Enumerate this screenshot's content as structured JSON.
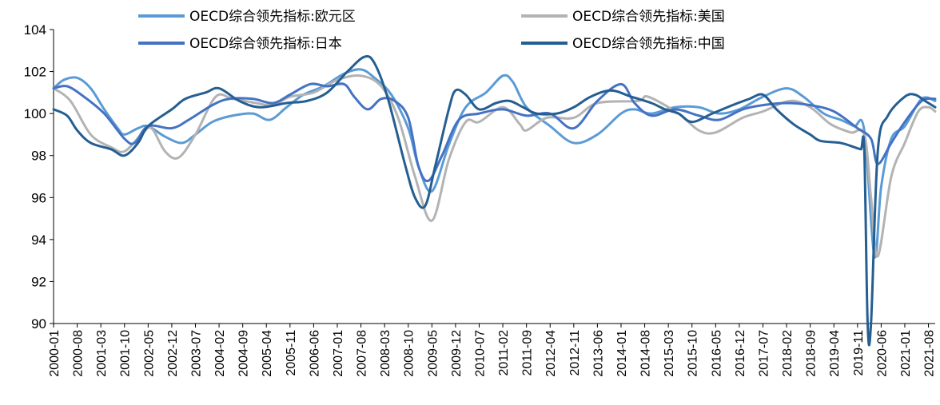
{
  "chart_data": {
    "type": "line",
    "title": "",
    "xlabel": "",
    "ylabel": "",
    "ylim": [
      90,
      104
    ],
    "yticks": [
      90,
      92,
      94,
      96,
      98,
      100,
      102,
      104
    ],
    "x_range": [
      "2000-01",
      "2021-10"
    ],
    "xticks": [
      "2000-01",
      "2000-08",
      "2001-03",
      "2001-10",
      "2002-05",
      "2002-12",
      "2003-07",
      "2004-02",
      "2004-09",
      "2005-04",
      "2005-11",
      "2006-06",
      "2007-01",
      "2007-08",
      "2008-03",
      "2008-10",
      "2009-05",
      "2009-12",
      "2010-07",
      "2011-02",
      "2011-09",
      "2012-04",
      "2012-11",
      "2013-06",
      "2014-01",
      "2014-08",
      "2015-03",
      "2015-10",
      "2016-05",
      "2016-12",
      "2017-07",
      "2018-02",
      "2018-09",
      "2019-04",
      "2019-11",
      "2020-06",
      "2021-01",
      "2021-08"
    ],
    "legend_position": "top",
    "series": [
      {
        "name": "OECD综合领先指标:欧元区",
        "color": "#5b9bd5",
        "points": [
          [
            "2000-01",
            101.2
          ],
          [
            "2000-04",
            101.6
          ],
          [
            "2000-08",
            101.7
          ],
          [
            "2000-12",
            101.2
          ],
          [
            "2001-04",
            100.2
          ],
          [
            "2001-08",
            99.3
          ],
          [
            "2001-10",
            99.0
          ],
          [
            "2002-02",
            99.3
          ],
          [
            "2002-05",
            99.4
          ],
          [
            "2002-10",
            98.9
          ],
          [
            "2003-03",
            98.6
          ],
          [
            "2003-07",
            99.0
          ],
          [
            "2003-12",
            99.6
          ],
          [
            "2004-06",
            99.9
          ],
          [
            "2004-12",
            100.0
          ],
          [
            "2005-05",
            99.7
          ],
          [
            "2005-10",
            100.3
          ],
          [
            "2006-03",
            100.9
          ],
          [
            "2006-09",
            101.3
          ],
          [
            "2007-03",
            101.9
          ],
          [
            "2007-08",
            102.1
          ],
          [
            "2007-12",
            101.7
          ],
          [
            "2008-05",
            100.9
          ],
          [
            "2008-10",
            99.3
          ],
          [
            "2009-01",
            97.5
          ],
          [
            "2009-05",
            96.3
          ],
          [
            "2009-10",
            98.5
          ],
          [
            "2010-03",
            100.3
          ],
          [
            "2010-09",
            101.0
          ],
          [
            "2011-02",
            101.8
          ],
          [
            "2011-05",
            101.5
          ],
          [
            "2011-09",
            100.3
          ],
          [
            "2012-04",
            99.4
          ],
          [
            "2012-11",
            98.6
          ],
          [
            "2013-06",
            99.0
          ],
          [
            "2014-01",
            100.0
          ],
          [
            "2014-05",
            100.2
          ],
          [
            "2014-10",
            100.0
          ],
          [
            "2015-05",
            100.3
          ],
          [
            "2015-12",
            100.3
          ],
          [
            "2016-06",
            100.0
          ],
          [
            "2016-12",
            100.2
          ],
          [
            "2017-07",
            100.8
          ],
          [
            "2018-02",
            101.2
          ],
          [
            "2018-07",
            100.8
          ],
          [
            "2019-01",
            100.0
          ],
          [
            "2019-06",
            99.7
          ],
          [
            "2019-10",
            99.4
          ],
          [
            "2020-01",
            99.2
          ],
          [
            "2020-04",
            93.2
          ],
          [
            "2020-06",
            96.5
          ],
          [
            "2020-09",
            98.8
          ],
          [
            "2021-01",
            99.4
          ],
          [
            "2021-06",
            100.7
          ],
          [
            "2021-10",
            100.6
          ]
        ]
      },
      {
        "name": "OECD综合领先指标:美国",
        "color": "#b3b3b3",
        "points": [
          [
            "2000-01",
            101.2
          ],
          [
            "2000-06",
            100.6
          ],
          [
            "2000-12",
            99.0
          ],
          [
            "2001-06",
            98.4
          ],
          [
            "2001-10",
            98.2
          ],
          [
            "2002-03",
            99.0
          ],
          [
            "2002-06",
            99.3
          ],
          [
            "2002-10",
            98.2
          ],
          [
            "2003-02",
            97.9
          ],
          [
            "2003-07",
            99.0
          ],
          [
            "2004-01",
            100.8
          ],
          [
            "2004-06",
            100.7
          ],
          [
            "2005-01",
            100.5
          ],
          [
            "2005-06",
            100.4
          ],
          [
            "2005-11",
            100.8
          ],
          [
            "2006-06",
            101.0
          ],
          [
            "2007-01",
            101.6
          ],
          [
            "2007-08",
            101.8
          ],
          [
            "2008-02",
            101.3
          ],
          [
            "2008-07",
            99.8
          ],
          [
            "2008-12",
            97.0
          ],
          [
            "2009-05",
            94.9
          ],
          [
            "2009-10",
            97.8
          ],
          [
            "2010-03",
            99.6
          ],
          [
            "2010-07",
            99.6
          ],
          [
            "2011-02",
            100.3
          ],
          [
            "2011-07",
            99.5
          ],
          [
            "2011-09",
            99.2
          ],
          [
            "2012-03",
            99.8
          ],
          [
            "2012-11",
            99.8
          ],
          [
            "2013-06",
            100.5
          ],
          [
            "2014-06",
            100.6
          ],
          [
            "2014-09",
            100.8
          ],
          [
            "2015-06",
            100.0
          ],
          [
            "2015-12",
            99.2
          ],
          [
            "2016-05",
            99.1
          ],
          [
            "2017-01",
            99.8
          ],
          [
            "2017-07",
            100.1
          ],
          [
            "2018-03",
            100.6
          ],
          [
            "2018-09",
            100.3
          ],
          [
            "2019-03",
            99.5
          ],
          [
            "2019-09",
            99.1
          ],
          [
            "2020-01",
            99.0
          ],
          [
            "2020-03",
            96.0
          ],
          [
            "2020-05",
            93.2
          ],
          [
            "2020-09",
            97.0
          ],
          [
            "2021-01",
            98.6
          ],
          [
            "2021-05",
            100.1
          ],
          [
            "2021-08",
            100.3
          ],
          [
            "2021-10",
            100.1
          ]
        ]
      },
      {
        "name": "OECD综合领先指标:日本",
        "color": "#4472c4",
        "points": [
          [
            "2000-01",
            101.2
          ],
          [
            "2000-05",
            101.3
          ],
          [
            "2000-10",
            100.8
          ],
          [
            "2001-04",
            100.0
          ],
          [
            "2001-10",
            98.8
          ],
          [
            "2002-01",
            98.6
          ],
          [
            "2002-05",
            99.4
          ],
          [
            "2002-12",
            99.3
          ],
          [
            "2003-05",
            99.7
          ],
          [
            "2003-12",
            100.4
          ],
          [
            "2004-05",
            100.7
          ],
          [
            "2004-12",
            100.7
          ],
          [
            "2005-06",
            100.5
          ],
          [
            "2005-11",
            100.9
          ],
          [
            "2006-05",
            101.4
          ],
          [
            "2006-10",
            101.3
          ],
          [
            "2007-03",
            101.4
          ],
          [
            "2007-06",
            100.8
          ],
          [
            "2007-10",
            100.2
          ],
          [
            "2008-02",
            100.7
          ],
          [
            "2008-06",
            100.6
          ],
          [
            "2008-10",
            99.8
          ],
          [
            "2009-01",
            97.5
          ],
          [
            "2009-04",
            96.8
          ],
          [
            "2009-08",
            98.0
          ],
          [
            "2010-01",
            99.7
          ],
          [
            "2010-07",
            100.0
          ],
          [
            "2011-02",
            100.2
          ],
          [
            "2011-09",
            99.9
          ],
          [
            "2012-04",
            100.0
          ],
          [
            "2012-11",
            99.3
          ],
          [
            "2013-06",
            100.6
          ],
          [
            "2014-01",
            101.4
          ],
          [
            "2014-05",
            100.5
          ],
          [
            "2014-10",
            99.9
          ],
          [
            "2015-05",
            100.2
          ],
          [
            "2015-12",
            99.9
          ],
          [
            "2016-06",
            99.7
          ],
          [
            "2017-01",
            100.2
          ],
          [
            "2017-07",
            100.4
          ],
          [
            "2018-02",
            100.5
          ],
          [
            "2018-09",
            100.4
          ],
          [
            "2019-04",
            100.1
          ],
          [
            "2019-11",
            99.3
          ],
          [
            "2020-03",
            98.8
          ],
          [
            "2020-05",
            97.6
          ],
          [
            "2020-09",
            98.6
          ],
          [
            "2021-01",
            99.6
          ],
          [
            "2021-06",
            100.6
          ],
          [
            "2021-10",
            100.7
          ]
        ]
      },
      {
        "name": "OECD综合领先指标:中国",
        "color": "#255e91",
        "points": [
          [
            "2000-01",
            100.2
          ],
          [
            "2000-05",
            99.9
          ],
          [
            "2000-08",
            99.2
          ],
          [
            "2000-12",
            98.6
          ],
          [
            "2001-06",
            98.3
          ],
          [
            "2001-10",
            98.0
          ],
          [
            "2002-02",
            98.6
          ],
          [
            "2002-05",
            99.4
          ],
          [
            "2002-12",
            100.2
          ],
          [
            "2003-04",
            100.7
          ],
          [
            "2003-10",
            101.0
          ],
          [
            "2004-02",
            101.2
          ],
          [
            "2004-08",
            100.6
          ],
          [
            "2005-02",
            100.3
          ],
          [
            "2005-10",
            100.5
          ],
          [
            "2006-04",
            100.6
          ],
          [
            "2006-10",
            101.0
          ],
          [
            "2007-04",
            102.0
          ],
          [
            "2007-09",
            102.7
          ],
          [
            "2007-12",
            102.4
          ],
          [
            "2008-04",
            100.7
          ],
          [
            "2008-09",
            97.6
          ],
          [
            "2008-12",
            96.0
          ],
          [
            "2009-03",
            95.6
          ],
          [
            "2009-06",
            97.5
          ],
          [
            "2009-10",
            100.2
          ],
          [
            "2009-12",
            101.1
          ],
          [
            "2010-03",
            100.9
          ],
          [
            "2010-07",
            100.2
          ],
          [
            "2010-12",
            100.5
          ],
          [
            "2011-04",
            100.6
          ],
          [
            "2011-08",
            100.3
          ],
          [
            "2011-12",
            100.0
          ],
          [
            "2012-06",
            100.0
          ],
          [
            "2012-11",
            100.3
          ],
          [
            "2013-04",
            100.8
          ],
          [
            "2013-10",
            101.1
          ],
          [
            "2014-04",
            100.8
          ],
          [
            "2014-10",
            100.5
          ],
          [
            "2015-02",
            100.2
          ],
          [
            "2015-06",
            100.0
          ],
          [
            "2015-10",
            99.6
          ],
          [
            "2016-04",
            100.0
          ],
          [
            "2016-10",
            100.4
          ],
          [
            "2017-03",
            100.7
          ],
          [
            "2017-07",
            100.9
          ],
          [
            "2017-11",
            100.2
          ],
          [
            "2018-04",
            99.5
          ],
          [
            "2018-09",
            99.0
          ],
          [
            "2018-12",
            98.7
          ],
          [
            "2019-06",
            98.6
          ],
          [
            "2019-10",
            98.4
          ],
          [
            "2019-12",
            98.3
          ],
          [
            "2020-01",
            98.3
          ],
          [
            "2020-02",
            90.0
          ],
          [
            "2020-03",
            90.0
          ],
          [
            "2020-05",
            98.2
          ],
          [
            "2020-08",
            99.9
          ],
          [
            "2021-01",
            100.8
          ],
          [
            "2021-04",
            100.9
          ],
          [
            "2021-07",
            100.6
          ],
          [
            "2021-10",
            100.3
          ]
        ]
      }
    ]
  }
}
